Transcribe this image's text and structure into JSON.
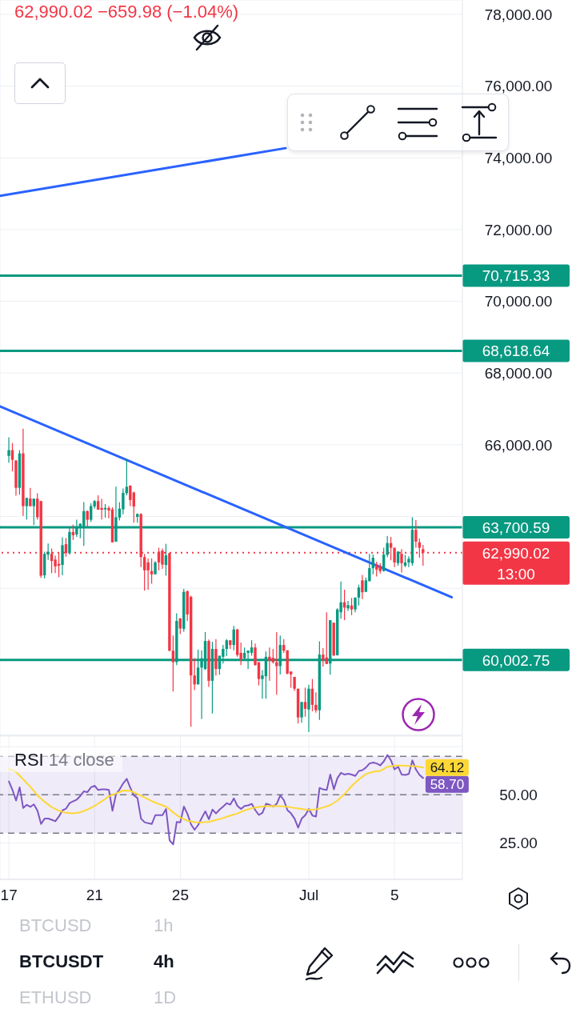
{
  "chart_data": [
    {
      "type": "candlestick",
      "annotations": [
        "62,990.02 −659.98 (−1.04%)",
        "13:00"
      ],
      "x": [
        "--06-17T00:00",
        "--06-17T04:00",
        "--06-17T08:00",
        "--06-17T12:00",
        "--06-17T16:00",
        "--06-17T20:00",
        "--06-18T00:00",
        "--06-18T04:00",
        "--06-18T08:00",
        "--06-18T12:00",
        "--06-18T16:00",
        "--06-18T20:00",
        "--06-19T00:00",
        "--06-19T04:00",
        "--06-19T08:00",
        "--06-19T12:00",
        "--06-19T16:00",
        "--06-19T20:00",
        "--06-20T00:00",
        "--06-20T04:00",
        "--06-20T08:00",
        "--06-20T12:00",
        "--06-20T16:00",
        "--06-20T20:00",
        "--06-21T00:00",
        "--06-21T04:00",
        "--06-21T08:00",
        "--06-21T12:00",
        "--06-21T16:00",
        "--06-21T20:00",
        "--06-22T00:00",
        "--06-22T04:00",
        "--06-22T08:00",
        "--06-22T12:00",
        "--06-22T16:00",
        "--06-22T20:00",
        "--06-23T00:00",
        "--06-23T04:00",
        "--06-23T08:00",
        "--06-23T12:00",
        "--06-23T16:00",
        "--06-23T20:00",
        "--06-24T00:00",
        "--06-24T04:00",
        "--06-24T08:00",
        "--06-24T12:00",
        "--06-24T16:00",
        "--06-24T20:00",
        "--06-25T00:00",
        "--06-25T04:00",
        "--06-25T08:00",
        "--06-25T12:00",
        "--06-25T16:00",
        "--06-25T20:00",
        "--06-26T00:00",
        "--06-26T04:00",
        "--06-26T08:00",
        "--06-26T12:00",
        "--06-26T16:00",
        "--06-26T20:00",
        "--06-27T00:00",
        "--06-27T04:00",
        "--06-27T08:00",
        "--06-27T12:00",
        "--06-27T16:00",
        "--06-27T20:00",
        "--06-28T00:00",
        "--06-28T04:00",
        "--06-28T08:00",
        "--06-28T12:00",
        "--06-28T16:00",
        "--06-28T20:00",
        "--06-29T00:00",
        "--06-29T04:00",
        "--06-29T08:00",
        "--06-29T12:00",
        "--06-29T16:00",
        "--06-29T20:00",
        "--06-30T00:00",
        "--06-30T04:00",
        "--06-30T08:00",
        "--06-30T12:00",
        "--06-30T16:00",
        "--06-30T20:00",
        "--07-01T00:00",
        "--07-01T04:00",
        "--07-01T08:00",
        "--07-01T12:00",
        "--07-01T16:00",
        "--07-01T20:00",
        "--07-02T00:00",
        "--07-02T04:00",
        "--07-02T08:00",
        "--07-02T12:00",
        "--07-02T16:00",
        "--07-02T20:00",
        "--07-03T00:00",
        "--07-03T04:00",
        "--07-03T08:00",
        "--07-03T12:00",
        "--07-03T16:00",
        "--07-03T20:00",
        "--07-04T00:00",
        "--07-04T04:00",
        "--07-04T08:00",
        "--07-04T12:00",
        "--07-04T16:00",
        "--07-04T20:00",
        "--07-05T00:00",
        "--07-05T04:00",
        "--07-05T08:00",
        "--07-05T12:00",
        "--07-05T16:00",
        "--07-05T20:00",
        "--07-06T00:00",
        "--07-06T04:00",
        "--07-06T08:00"
      ],
      "ohlc": [
        [
          65690,
          66210,
          65500,
          65850
        ],
        [
          65850,
          66050,
          65260,
          65580
        ],
        [
          65560,
          65580,
          64580,
          64800
        ],
        [
          64800,
          65850,
          64610,
          65760
        ],
        [
          65760,
          66450,
          64020,
          64290
        ],
        [
          64290,
          64520,
          63920,
          64520
        ],
        [
          64500,
          64800,
          64280,
          64290
        ],
        [
          64290,
          64500,
          63760,
          64500
        ],
        [
          64500,
          64650,
          63910,
          63980
        ],
        [
          64430,
          64440,
          62290,
          62350
        ],
        [
          62360,
          63020,
          62270,
          62960
        ],
        [
          62940,
          63250,
          62790,
          63020
        ],
        [
          62960,
          63110,
          62420,
          62760
        ],
        [
          62800,
          62910,
          62420,
          62610
        ],
        [
          62680,
          62980,
          62310,
          62630
        ],
        [
          62650,
          63420,
          62360,
          63200
        ],
        [
          63230,
          63400,
          62880,
          62980
        ],
        [
          62980,
          63680,
          62940,
          63570
        ],
        [
          63570,
          63770,
          63350,
          63480
        ],
        [
          63500,
          63910,
          63430,
          63720
        ],
        [
          63690,
          63810,
          63400,
          63800
        ],
        [
          63690,
          64400,
          63180,
          64150
        ],
        [
          64150,
          64170,
          63720,
          63910
        ],
        [
          63910,
          64370,
          63850,
          64290
        ],
        [
          64280,
          64460,
          64220,
          64430
        ],
        [
          64430,
          64590,
          64190,
          64190
        ],
        [
          64240,
          64490,
          63920,
          64190
        ],
        [
          64200,
          64350,
          63970,
          64240
        ],
        [
          64240,
          64290,
          63950,
          64170
        ],
        [
          64200,
          64260,
          63280,
          63280
        ],
        [
          63300,
          64830,
          63300,
          63980
        ],
        [
          63970,
          64400,
          63890,
          64220
        ],
        [
          64200,
          64780,
          64060,
          64660
        ],
        [
          64650,
          65610,
          64590,
          64830
        ],
        [
          64860,
          64870,
          64290,
          64460
        ],
        [
          64670,
          64690,
          63830,
          64280
        ],
        [
          63990,
          64090,
          63830,
          64070
        ],
        [
          64070,
          64090,
          62590,
          62870
        ],
        [
          62870,
          62960,
          61940,
          62500
        ],
        [
          62720,
          62830,
          61960,
          62500
        ],
        [
          62480,
          62830,
          62130,
          62390
        ],
        [
          62390,
          62760,
          62390,
          62720
        ],
        [
          63020,
          63130,
          62500,
          62720
        ],
        [
          63050,
          63110,
          62540,
          62660
        ],
        [
          62650,
          63240,
          62350,
          62920
        ],
        [
          62980,
          62990,
          60240,
          60260
        ],
        [
          60260,
          60680,
          59120,
          59940
        ],
        [
          59940,
          61300,
          59860,
          61090
        ],
        [
          61160,
          61170,
          60720,
          60880
        ],
        [
          60870,
          61980,
          60790,
          61900
        ],
        [
          61920,
          61940,
          61090,
          61270
        ],
        [
          61760,
          61790,
          58140,
          59570
        ],
        [
          59570,
          60050,
          59160,
          59320
        ],
        [
          59320,
          60290,
          59320,
          59790
        ],
        [
          59790,
          60270,
          58360,
          60050
        ],
        [
          59750,
          60780,
          59720,
          60530
        ],
        [
          60530,
          60570,
          59250,
          59420
        ],
        [
          59420,
          60510,
          58510,
          60310
        ],
        [
          60310,
          60580,
          59570,
          59750
        ],
        [
          59750,
          60120,
          59590,
          60120
        ],
        [
          60090,
          60420,
          59900,
          60310
        ],
        [
          60310,
          60580,
          60110,
          60550
        ],
        [
          60550,
          60550,
          60310,
          60420
        ],
        [
          60420,
          60950,
          60270,
          60850
        ],
        [
          60850,
          60870,
          60090,
          60140
        ],
        [
          60200,
          60490,
          59860,
          60010
        ],
        [
          60050,
          60350,
          60010,
          60200
        ],
        [
          60200,
          60270,
          59750,
          60260
        ],
        [
          60200,
          60550,
          60120,
          60350
        ],
        [
          60350,
          60460,
          59840,
          59860
        ],
        [
          59940,
          59940,
          59290,
          59470
        ],
        [
          59470,
          59720,
          58920,
          59570
        ],
        [
          59550,
          60240,
          58920,
          60090
        ],
        [
          60090,
          60350,
          59420,
          59980
        ],
        [
          60060,
          60310,
          59900,
          59940
        ],
        [
          59940,
          60780,
          59030,
          59830
        ],
        [
          59830,
          60680,
          59600,
          60420
        ],
        [
          60420,
          60580,
          60200,
          60260
        ],
        [
          60270,
          60270,
          59600,
          59620
        ],
        [
          59680,
          59680,
          59230,
          59600
        ],
        [
          59530,
          59530,
          59140,
          59200
        ],
        [
          59200,
          59200,
          58230,
          58400
        ],
        [
          58400,
          58830,
          58250,
          58830
        ],
        [
          58830,
          59230,
          58420,
          58640
        ],
        [
          58620,
          59310,
          57990,
          59200
        ],
        [
          59200,
          59470,
          58570,
          58750
        ],
        [
          58750,
          59100,
          58530,
          58600
        ],
        [
          58600,
          60520,
          58330,
          60150
        ],
        [
          60150,
          60330,
          59820,
          60000
        ],
        [
          60070,
          61330,
          59890,
          59890
        ],
        [
          59900,
          61110,
          59590,
          61110
        ],
        [
          61040,
          61040,
          60110,
          60130
        ],
        [
          60130,
          61440,
          60130,
          61410
        ],
        [
          61330,
          62190,
          61150,
          61610
        ],
        [
          61610,
          61960,
          61110,
          61460
        ],
        [
          61440,
          61650,
          61370,
          61530
        ],
        [
          61520,
          61730,
          61250,
          61410
        ],
        [
          61410,
          61740,
          61330,
          61740
        ],
        [
          61740,
          62100,
          61520,
          62020
        ],
        [
          62220,
          62370,
          61700,
          61890
        ],
        [
          61900,
          62300,
          61900,
          62220
        ],
        [
          62200,
          62960,
          62190,
          62560
        ],
        [
          62560,
          62940,
          62390,
          62850
        ],
        [
          62670,
          62740,
          62330,
          62520
        ],
        [
          62630,
          62700,
          62410,
          62480
        ],
        [
          62480,
          63130,
          62470,
          62940
        ],
        [
          62930,
          63460,
          62870,
          63260
        ],
        [
          63260,
          63430,
          62780,
          63130
        ],
        [
          63130,
          63130,
          62590,
          62720
        ],
        [
          62700,
          63040,
          62630,
          63020
        ],
        [
          62960,
          63090,
          62440,
          62700
        ],
        [
          62630,
          62930,
          62590,
          62720
        ],
        [
          62720,
          62890,
          62590,
          62820
        ],
        [
          62700,
          63980,
          62630,
          63630
        ],
        [
          63630,
          63900,
          63130,
          63300
        ],
        [
          63280,
          63390,
          62850,
          63130
        ],
        [
          63090,
          63210,
          62630,
          62990.02
        ]
      ],
      "colors": [
        "#089981",
        "#f23645",
        "#f23645",
        "#089981",
        "#f23645",
        "#089981",
        "#f23645",
        "#089981",
        "#f23645",
        "#f23645",
        "#089981",
        "#089981",
        "#f23645",
        "#f23645",
        "#f23645",
        "#089981",
        "#f23645",
        "#089981",
        "#f23645",
        "#089981",
        "#089981",
        "#089981",
        "#f23645",
        "#089981",
        "#089981",
        "#f23645",
        "#f23645",
        "#089981",
        "#f23645",
        "#f23645",
        "#089981",
        "#089981",
        "#089981",
        "#089981",
        "#f23645",
        "#f23645",
        "#089981",
        "#f23645",
        "#f23645",
        "#f23645",
        "#f23645",
        "#089981",
        "#f23645",
        "#f23645",
        "#089981",
        "#f23645",
        "#f23645",
        "#089981",
        "#f23645",
        "#089981",
        "#f23645",
        "#f23645",
        "#f23645",
        "#089981",
        "#089981",
        "#089981",
        "#f23645",
        "#089981",
        "#f23645",
        "#089981",
        "#089981",
        "#089981",
        "#f23645",
        "#089981",
        "#f23645",
        "#f23645",
        "#089981",
        "#089981",
        "#089981",
        "#f23645",
        "#f23645",
        "#089981",
        "#089981",
        "#f23645",
        "#f23645",
        "#f23645",
        "#089981",
        "#f23645",
        "#f23645",
        "#f23645",
        "#f23645",
        "#f23645",
        "#089981",
        "#f23645",
        "#089981",
        "#f23645",
        "#f23645",
        "#089981",
        "#f23645",
        "#f23645",
        "#089981",
        "#f23645",
        "#089981",
        "#089981",
        "#f23645",
        "#089981",
        "#f23645",
        "#089981",
        "#089981",
        "#f23645",
        "#089981",
        "#089981",
        "#089981",
        "#f23645",
        "#f23645",
        "#089981",
        "#089981",
        "#f23645",
        "#f23645",
        "#089981",
        "#f23645",
        "#089981",
        "#089981",
        "#089981",
        "#f23645",
        "#f23645",
        "#f23645"
      ],
      "series": [
        {
          "type": "line",
          "x": [
            "--06-16T14:00",
            "--06-29T22:00"
          ],
          "values": [
            72940,
            74270
          ],
          "color": "#2962ff"
        },
        {
          "type": "line",
          "x": [
            "--06-16T14:00",
            "--07-07T16:00"
          ],
          "values": [
            67070,
            61750
          ],
          "color": "#2962ff"
        }
      ],
      "xlim": [
        "--06-16T14:00",
        "--07-08T04:00"
      ],
      "xticks": [
        {
          "value": "--06-17",
          "label": null
        },
        {
          "value": "--06-21",
          "label": null
        },
        {
          "value": "--06-25",
          "label": null
        },
        {
          "value": "--07-01",
          "label": null
        },
        {
          "value": "--07-05",
          "label": null
        }
      ],
      "ylim": [
        57900,
        78400
      ],
      "yticks": [
        {
          "value": 60000,
          "label": null
        },
        {
          "value": 62000,
          "label": null
        },
        {
          "value": 64000,
          "label": null
        },
        {
          "value": 66000,
          "label": "66,000.00"
        },
        {
          "value": 68000,
          "label": "68,000.00"
        },
        {
          "value": 70000,
          "label": "70,000.00"
        },
        {
          "value": 72000,
          "label": "72,000.00"
        },
        {
          "value": 74000,
          "label": "74,000.00"
        },
        {
          "value": 76000,
          "label": "76,000.00"
        },
        {
          "value": 78000,
          "label": "78,000.00"
        }
      ],
      "tick_labels": "y",
      "grid": true,
      "ref_lines": [
        {
          "axis": "y",
          "value": 70715.33,
          "label": "70,715.33",
          "color": "#089981"
        },
        {
          "axis": "y",
          "value": 68618.64,
          "label": "68,618.64",
          "color": "#089981"
        },
        {
          "axis": "y",
          "value": 63700.59,
          "label": "63,700.59",
          "color": "#089981"
        },
        {
          "axis": "y",
          "value": 60002.75,
          "label": "60,002.75",
          "color": "#089981"
        },
        {
          "axis": "y",
          "value": 62990.02,
          "label": "62,990.02",
          "color": "#f23645",
          "line_style": "dotted"
        }
      ]
    },
    {
      "type": "line",
      "title": "RSI 14 close",
      "x": [
        "--06-17T00:00",
        "--06-17T04:00",
        "--06-17T08:00",
        "--06-17T12:00",
        "--06-17T16:00",
        "--06-17T20:00",
        "--06-18T00:00",
        "--06-18T04:00",
        "--06-18T08:00",
        "--06-18T12:00",
        "--06-18T16:00",
        "--06-18T20:00",
        "--06-19T00:00",
        "--06-19T04:00",
        "--06-19T08:00",
        "--06-19T12:00",
        "--06-19T16:00",
        "--06-19T20:00",
        "--06-20T00:00",
        "--06-20T04:00",
        "--06-20T08:00",
        "--06-20T12:00",
        "--06-20T16:00",
        "--06-20T20:00",
        "--06-21T00:00",
        "--06-21T04:00",
        "--06-21T08:00",
        "--06-21T12:00",
        "--06-21T16:00",
        "--06-21T20:00",
        "--06-22T00:00",
        "--06-22T04:00",
        "--06-22T08:00",
        "--06-22T12:00",
        "--06-22T16:00",
        "--06-22T20:00",
        "--06-23T00:00",
        "--06-23T04:00",
        "--06-23T08:00",
        "--06-23T12:00",
        "--06-23T16:00",
        "--06-23T20:00",
        "--06-24T00:00",
        "--06-24T04:00",
        "--06-24T08:00",
        "--06-24T12:00",
        "--06-24T16:00",
        "--06-24T20:00",
        "--06-25T00:00",
        "--06-25T04:00",
        "--06-25T08:00",
        "--06-25T12:00",
        "--06-25T16:00",
        "--06-25T20:00",
        "--06-26T00:00",
        "--06-26T04:00",
        "--06-26T08:00",
        "--06-26T12:00",
        "--06-26T16:00",
        "--06-26T20:00",
        "--06-27T00:00",
        "--06-27T04:00",
        "--06-27T08:00",
        "--06-27T12:00",
        "--06-27T16:00",
        "--06-27T20:00",
        "--06-28T00:00",
        "--06-28T04:00",
        "--06-28T08:00",
        "--06-28T12:00",
        "--06-28T16:00",
        "--06-28T20:00",
        "--06-29T00:00",
        "--06-29T04:00",
        "--06-29T08:00",
        "--06-29T12:00",
        "--06-29T16:00",
        "--06-29T20:00",
        "--06-30T00:00",
        "--06-30T04:00",
        "--06-30T08:00",
        "--06-30T12:00",
        "--06-30T16:00",
        "--06-30T20:00",
        "--07-01T00:00",
        "--07-01T04:00",
        "--07-01T08:00",
        "--07-01T12:00",
        "--07-01T16:00",
        "--07-01T20:00",
        "--07-02T00:00",
        "--07-02T04:00",
        "--07-02T08:00",
        "--07-02T12:00",
        "--07-02T16:00",
        "--07-02T20:00",
        "--07-03T00:00",
        "--07-03T04:00",
        "--07-03T08:00",
        "--07-03T12:00",
        "--07-03T16:00",
        "--07-03T20:00",
        "--07-04T00:00",
        "--07-04T04:00",
        "--07-04T08:00",
        "--07-04T12:00",
        "--07-04T16:00",
        "--07-04T20:00",
        "--07-05T00:00",
        "--07-05T04:00",
        "--07-05T08:00",
        "--07-05T12:00",
        "--07-05T16:00",
        "--07-05T20:00",
        "--07-06T00:00",
        "--07-06T04:00",
        "--07-06T08:00"
      ],
      "series": [
        {
          "color": "#7e57c2",
          "values": [
            56.9,
            52.5,
            47.0,
            53.9,
            43.1,
            44.8,
            43.7,
            45.0,
            41.7,
            34.8,
            37.6,
            37.6,
            37.0,
            36.2,
            38.7,
            41.9,
            42.8,
            45.7,
            46.6,
            47.5,
            49.4,
            51.8,
            51.4,
            53.9,
            54.7,
            52.5,
            52.8,
            52.8,
            52.5,
            41.7,
            50.4,
            52.8,
            55.9,
            58.3,
            53.6,
            49.7,
            48.3,
            37.6,
            35.7,
            35.2,
            34.8,
            39.4,
            39.4,
            39.4,
            42.6,
            26.3,
            24.2,
            35.9,
            35.7,
            43.9,
            40.1,
            34.6,
            31.8,
            34.3,
            38.0,
            41.4,
            37.3,
            42.3,
            40.3,
            42.3,
            43.9,
            45.6,
            44.9,
            48.1,
            44.2,
            42.6,
            44.2,
            44.5,
            45.3,
            42.0,
            39.5,
            40.6,
            45.3,
            44.8,
            43.9,
            45.3,
            49.7,
            47.2,
            42.0,
            40.3,
            37.6,
            32.9,
            37.6,
            39.4,
            42.6,
            39.2,
            38.7,
            53.6,
            52.8,
            52.5,
            60.5,
            52.8,
            58.7,
            61.4,
            60.5,
            60.9,
            60.5,
            59.8,
            62.4,
            62.8,
            64.2,
            66.3,
            66.8,
            66.3,
            65.3,
            67.4,
            70.7,
            67.9,
            63.2,
            64.6,
            60.5,
            60.3,
            60.8,
            67.9,
            63.1,
            60.3,
            58.7
          ],
          "value_labels": [
            null,
            null,
            null,
            null,
            null,
            null,
            null,
            null,
            null,
            null,
            null,
            null,
            null,
            null,
            null,
            null,
            null,
            null,
            null,
            null,
            null,
            null,
            null,
            null,
            null,
            null,
            null,
            null,
            null,
            null,
            null,
            null,
            null,
            null,
            null,
            null,
            null,
            null,
            null,
            null,
            null,
            null,
            null,
            null,
            null,
            null,
            null,
            null,
            null,
            null,
            null,
            null,
            null,
            null,
            null,
            null,
            null,
            null,
            null,
            null,
            null,
            null,
            null,
            null,
            null,
            null,
            null,
            null,
            null,
            null,
            null,
            null,
            null,
            null,
            null,
            null,
            null,
            null,
            null,
            null,
            null,
            null,
            null,
            null,
            null,
            null,
            null,
            null,
            null,
            null,
            null,
            null,
            null,
            null,
            null,
            null,
            null,
            null,
            null,
            null,
            null,
            null,
            null,
            null,
            null,
            null,
            null,
            null,
            null,
            null,
            null,
            null,
            null,
            null,
            null,
            null,
            "58.70"
          ]
        },
        {
          "color": "#fdd835",
          "x": [
            "--06-17T00:00",
            "--06-17T08:00",
            "--06-17T16:00",
            "--06-18T00:00",
            "--06-18T08:00",
            "--06-18T16:00",
            "--06-19T00:00",
            "--06-19T08:00",
            "--06-19T16:00",
            "--06-20T00:00",
            "--06-20T08:00",
            "--06-20T16:00",
            "--06-21T00:00",
            "--06-21T08:00",
            "--06-21T16:00",
            "--06-22T00:00",
            "--06-22T08:00",
            "--06-22T16:00",
            "--06-23T00:00",
            "--06-23T08:00",
            "--06-23T16:00",
            "--06-24T00:00",
            "--06-24T08:00",
            "--06-24T16:00",
            "--06-25T00:00",
            "--06-25T08:00",
            "--06-25T16:00",
            "--06-26T00:00",
            "--06-26T08:00",
            "--06-26T16:00",
            "--06-27T00:00",
            "--06-27T08:00",
            "--06-27T16:00",
            "--06-28T00:00",
            "--06-28T08:00",
            "--06-28T16:00",
            "--06-29T00:00",
            "--06-29T08:00",
            "--06-29T16:00",
            "--06-30T00:00",
            "--06-30T08:00",
            "--06-30T16:00",
            "--07-01T00:00",
            "--07-01T08:00",
            "--07-01T16:00",
            "--07-02T00:00",
            "--07-02T08:00",
            "--07-02T16:00",
            "--07-03T00:00",
            "--07-03T08:00",
            "--07-03T16:00",
            "--07-04T00:00",
            "--07-04T08:00",
            "--07-04T16:00",
            "--07-05T00:00",
            "--07-05T08:00",
            "--07-05T16:00",
            "--07-06T00:00",
            "--07-06T08:00"
          ],
          "values": [
            63.5,
            61.9,
            58.0,
            54.1,
            49.7,
            46.3,
            43.5,
            41.7,
            40.6,
            40.3,
            40.9,
            42.3,
            44.2,
            46.6,
            49.3,
            50.7,
            52.2,
            52.1,
            50.4,
            48.6,
            46.7,
            45.2,
            43.9,
            40.8,
            38.1,
            36.5,
            35.8,
            35.7,
            35.9,
            36.9,
            37.9,
            39.2,
            40.3,
            41.9,
            43.0,
            43.7,
            44.1,
            44.2,
            44.1,
            43.8,
            43.1,
            42.6,
            42.1,
            42.4,
            43.4,
            44.6,
            47.0,
            50.4,
            54.6,
            58.0,
            60.8,
            62.0,
            62.4,
            64.5,
            65.2,
            65.2,
            65.0,
            64.8,
            64.12
          ],
          "value_labels": [
            null,
            null,
            null,
            null,
            null,
            null,
            null,
            null,
            null,
            null,
            null,
            null,
            null,
            null,
            null,
            null,
            null,
            null,
            null,
            null,
            null,
            null,
            null,
            null,
            null,
            null,
            null,
            null,
            null,
            null,
            null,
            null,
            null,
            null,
            null,
            null,
            null,
            null,
            null,
            null,
            null,
            null,
            null,
            null,
            null,
            null,
            null,
            null,
            null,
            null,
            null,
            null,
            null,
            null,
            null,
            null,
            null,
            null,
            "64.12"
          ]
        }
      ],
      "xlim": [
        "--06-16T14:00",
        "--07-08T04:00"
      ],
      "xticks": [
        {
          "value": "--06-17",
          "label": "17"
        },
        {
          "value": "--06-21",
          "label": "21"
        },
        {
          "value": "--06-25",
          "label": "25"
        },
        {
          "value": "--07-01",
          "label": "Jul"
        },
        {
          "value": "--07-05",
          "label": "5"
        }
      ],
      "ylim": [
        6,
        80.5
      ],
      "yticks": [
        {
          "value": 25,
          "label": "25.00"
        },
        {
          "value": 50,
          "label": "50.00"
        },
        {
          "value": 75,
          "label": null
        }
      ],
      "grid": true,
      "bands": [
        {
          "axis": "y",
          "from": 30,
          "to": 70,
          "color": "#7e57c2"
        }
      ],
      "ref_lines": [
        {
          "axis": "y",
          "value": 70,
          "color": "#787b86",
          "line_style": "dashed"
        },
        {
          "axis": "y",
          "value": 50,
          "color": "#787b86",
          "line_style": "dashed"
        },
        {
          "axis": "y",
          "value": 30,
          "color": "#787b86",
          "line_style": "dashed"
        }
      ]
    },
    {
      "type": "other",
      "annotations": [
        "BTCUSD",
        "1h",
        "BTCUSDT",
        "4h",
        "ETHUSD",
        "1D"
      ]
    }
  ]
}
